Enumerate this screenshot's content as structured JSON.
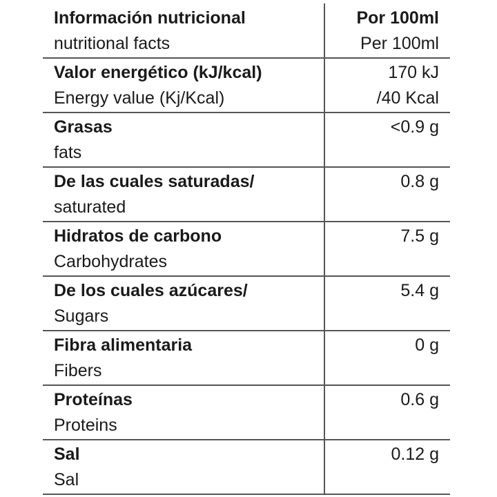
{
  "header": {
    "title": "Información nutricional",
    "subtitle": "nutritional facts",
    "value": "Por 100ml",
    "value_sub": "Per 100ml"
  },
  "rows": [
    {
      "name": "Valor energético (kJ/kcal)",
      "name_en": "Energy value (Kj/Kcal)",
      "value": [
        "170 kJ",
        "/40 Kcal"
      ]
    },
    {
      "name": "Grasas",
      "name_en": "fats",
      "value": [
        "<0.9 g"
      ]
    },
    {
      "name": "De las cuales saturadas/",
      "name_en": "saturated",
      "value": [
        "0.8 g"
      ]
    },
    {
      "name": "Hidratos de carbono",
      "name_en": "Carbohydrates",
      "value": [
        "7.5 g"
      ]
    },
    {
      "name": "De los cuales azúcares/",
      "name_en": "Sugars",
      "value": [
        "5.4 g"
      ]
    },
    {
      "name": "Fibra alimentaria",
      "name_en": "Fibers",
      "value": [
        "0 g"
      ]
    },
    {
      "name": "Proteínas",
      "name_en": "Proteins",
      "value": [
        "0.6 g"
      ]
    },
    {
      "name": "Sal",
      "name_en": "Sal",
      "value": [
        "0.12 g"
      ]
    }
  ]
}
